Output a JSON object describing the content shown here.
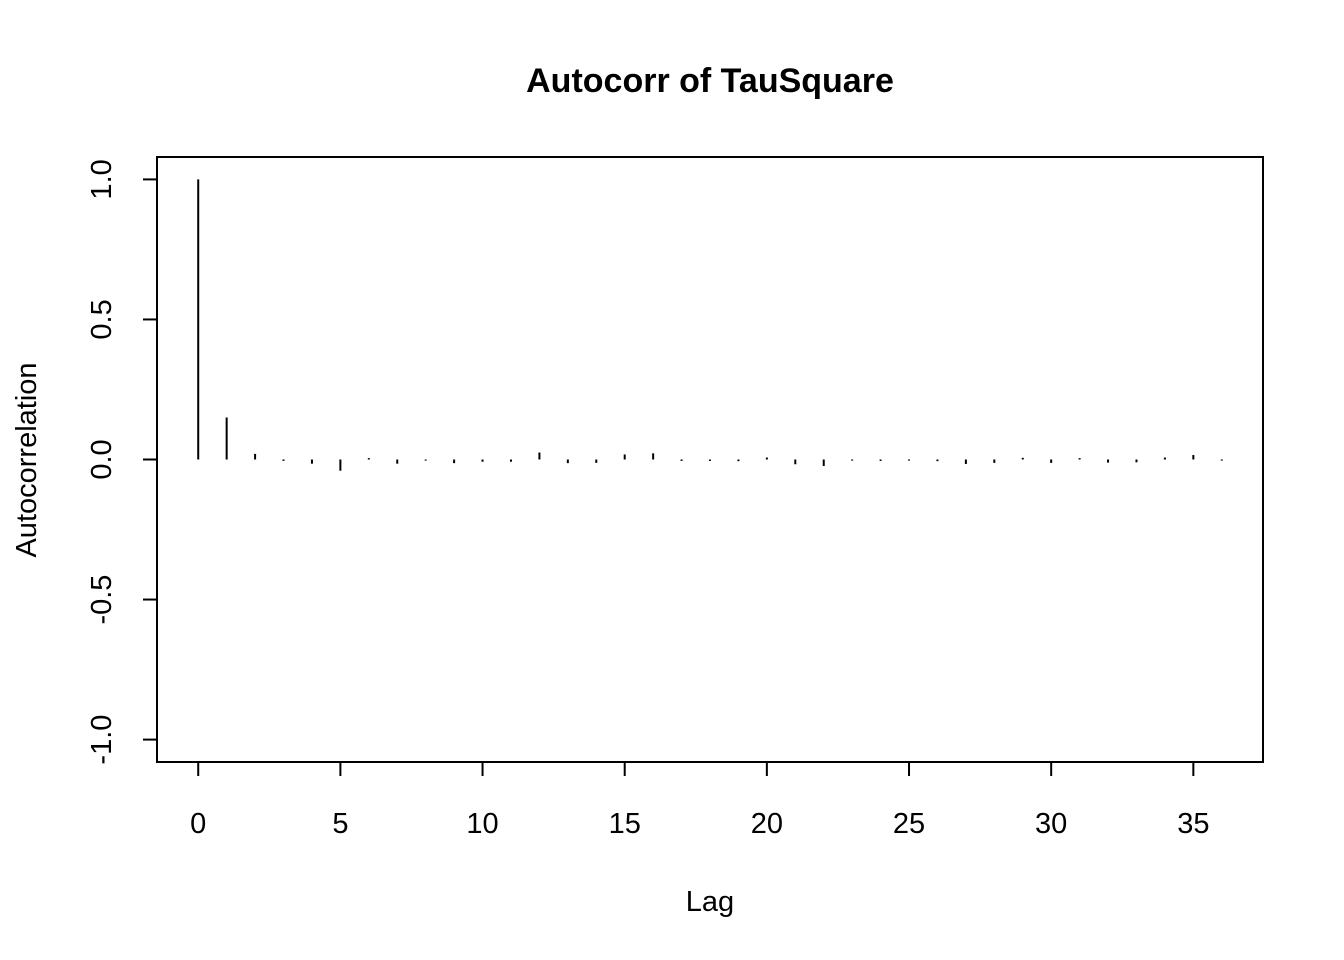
{
  "chart_data": {
    "type": "bar",
    "title": "Autocorr of TauSquare",
    "xlabel": "Lag",
    "ylabel": "Autocorrelation",
    "xlim": [
      -1.45,
      37.45
    ],
    "ylim": [
      -1.08,
      1.08
    ],
    "x_ticks": [
      0,
      5,
      10,
      15,
      20,
      25,
      30,
      35
    ],
    "y_ticks": [
      -1.0,
      -0.5,
      0.0,
      0.5,
      1.0
    ],
    "y_tick_labels": [
      "-1.0",
      "-0.5",
      "0.0",
      "0.5",
      "1.0"
    ],
    "grid": false,
    "color": "#000000",
    "x": [
      0,
      1,
      2,
      3,
      4,
      5,
      6,
      7,
      8,
      9,
      10,
      11,
      12,
      13,
      14,
      15,
      16,
      17,
      18,
      19,
      20,
      21,
      22,
      23,
      24,
      25,
      26,
      27,
      28,
      29,
      30,
      31,
      32,
      33,
      34,
      35,
      36
    ],
    "values": [
      1.0,
      0.15,
      0.02,
      -0.005,
      -0.015,
      -0.04,
      0.005,
      -0.015,
      -0.004,
      -0.013,
      -0.008,
      -0.008,
      0.025,
      -0.013,
      -0.012,
      0.018,
      0.022,
      -0.005,
      -0.005,
      -0.006,
      0.007,
      -0.017,
      -0.023,
      -0.004,
      -0.005,
      -0.004,
      -0.006,
      -0.016,
      -0.012,
      0.006,
      -0.012,
      0.005,
      -0.011,
      -0.01,
      0.007,
      0.016,
      -0.004
    ]
  }
}
